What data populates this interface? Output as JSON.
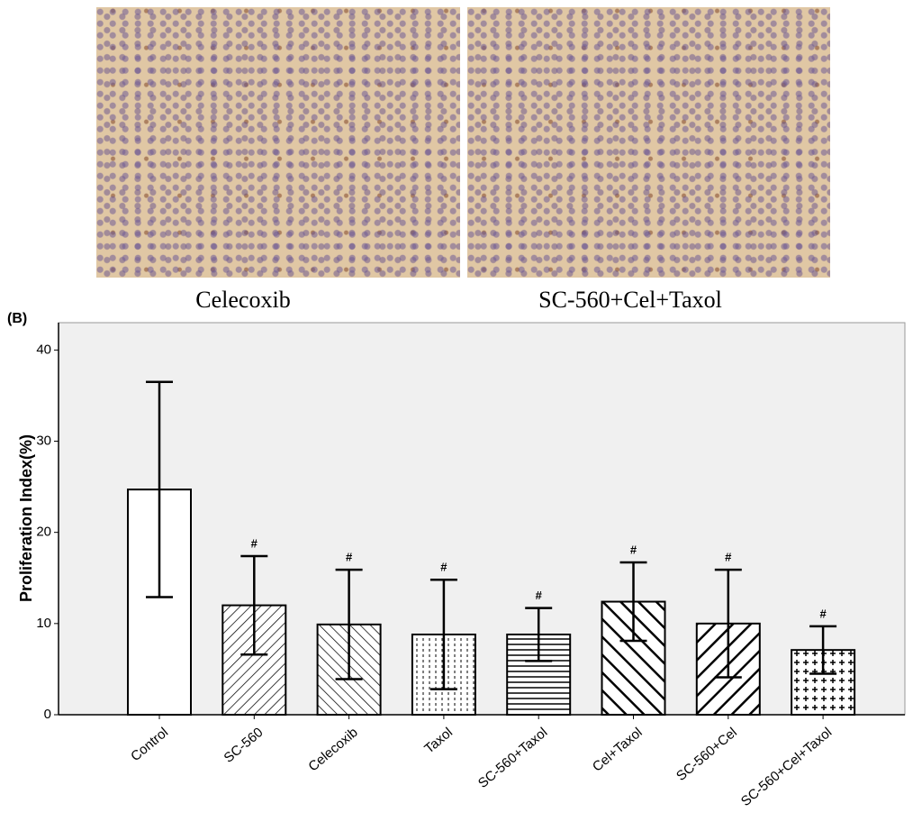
{
  "panels": [
    {
      "caption": "Celecoxib"
    },
    {
      "caption": "SC-560+Cel+Taxol"
    }
  ],
  "chart_data": {
    "type": "bar",
    "label": "(B)",
    "y_label": "Proliferation Index(%)",
    "categories": [
      "Control",
      "SC-560",
      "Celecoxib",
      "Taxol",
      "SC-560+Taxol",
      "Cel+Taxol",
      "SC-560+Cel",
      "SC-560+Cel+Taxol"
    ],
    "values": [
      24.7,
      12.0,
      9.9,
      8.8,
      8.8,
      12.4,
      10.0,
      7.1
    ],
    "errors": [
      11.8,
      5.4,
      6.0,
      6.0,
      2.9,
      4.3,
      5.9,
      2.6
    ],
    "markers": [
      null,
      "#",
      "#",
      "#",
      "#",
      "#",
      "#",
      "#"
    ],
    "ylim": [
      0,
      43
    ],
    "yticks": [
      0,
      10,
      20,
      30,
      40
    ],
    "color": "#ffffff",
    "background": "#f0f0f0"
  }
}
